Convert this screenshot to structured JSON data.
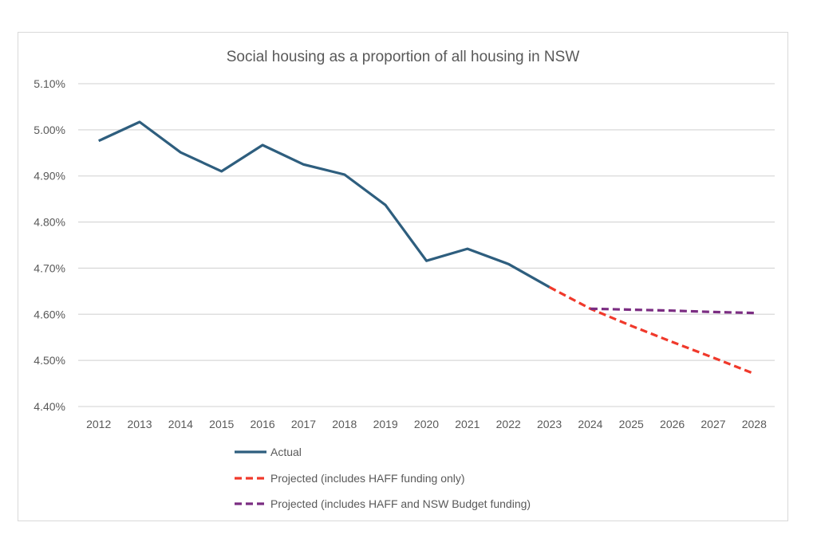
{
  "chart_data": {
    "type": "line",
    "title": "Social housing as a proportion of all housing in NSW",
    "xlabel": "",
    "ylabel": "",
    "x": [
      "2012",
      "2013",
      "2014",
      "2015",
      "2016",
      "2017",
      "2018",
      "2019",
      "2020",
      "2021",
      "2022",
      "2023",
      "2024",
      "2025",
      "2026",
      "2027",
      "2028"
    ],
    "ylim": [
      4.4,
      5.1
    ],
    "yticks": [
      4.4,
      4.5,
      4.6,
      4.7,
      4.8,
      4.9,
      5.0,
      5.1
    ],
    "ytick_labels": [
      "4.40%",
      "4.50%",
      "4.60%",
      "4.70%",
      "4.80%",
      "4.90%",
      "5.00%",
      "5.10%"
    ],
    "y_unit": "%",
    "grid": "horizontal",
    "legend_position": "bottom",
    "series": [
      {
        "name": "Actual",
        "color": "#2e5e7e",
        "style": "solid",
        "values": [
          4.976,
          5.017,
          4.951,
          4.91,
          4.967,
          4.925,
          4.903,
          4.837,
          4.716,
          4.742,
          4.709,
          4.659,
          null,
          null,
          null,
          null,
          null
        ]
      },
      {
        "name": "Projected (includes HAFF funding only)",
        "color": "#f0392b",
        "style": "dashed",
        "values": [
          null,
          null,
          null,
          null,
          null,
          null,
          null,
          null,
          null,
          null,
          null,
          4.659,
          4.612,
          4.575,
          4.54,
          4.506,
          4.471
        ]
      },
      {
        "name": "Projected (includes HAFF and NSW Budget funding)",
        "color": "#7b2d82",
        "style": "dashed",
        "values": [
          null,
          null,
          null,
          null,
          null,
          null,
          null,
          null,
          null,
          null,
          null,
          null,
          4.612,
          4.61,
          4.608,
          4.605,
          4.603
        ]
      }
    ]
  }
}
